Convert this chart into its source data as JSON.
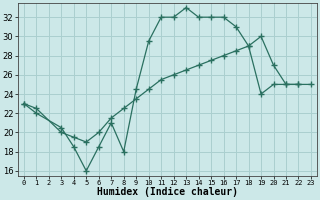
{
  "xlabel": "Humidex (Indice chaleur)",
  "xlim": [
    -0.5,
    23.5
  ],
  "ylim": [
    15.5,
    33.5
  ],
  "yticks": [
    16,
    18,
    20,
    22,
    24,
    26,
    28,
    30,
    32
  ],
  "xticks": [
    0,
    1,
    2,
    3,
    4,
    5,
    6,
    7,
    8,
    9,
    10,
    11,
    12,
    13,
    14,
    15,
    16,
    17,
    18,
    19,
    20,
    21,
    22,
    23
  ],
  "background_color": "#cce8e8",
  "line_color": "#2a7060",
  "grid_color": "#aacfcf",
  "line1_x": [
    0,
    1,
    3,
    4,
    5,
    6,
    7,
    8,
    9,
    10,
    11,
    12,
    13,
    14,
    15,
    16,
    17,
    18,
    19,
    20,
    21,
    22
  ],
  "line1_y": [
    23,
    22,
    20.5,
    18.5,
    16,
    18.5,
    21,
    18,
    24.5,
    29.5,
    32,
    32,
    33,
    32,
    32,
    32,
    31,
    29,
    30,
    27,
    25,
    25
  ],
  "line2_x": [
    0,
    1,
    3,
    4,
    5,
    6,
    7,
    8,
    9,
    10,
    11,
    12,
    13,
    14,
    15,
    16,
    17,
    18,
    19,
    20,
    21,
    22,
    23
  ],
  "line2_y": [
    23,
    22.5,
    20,
    19.5,
    19,
    20,
    21.5,
    22.5,
    23.5,
    24.5,
    25.5,
    26,
    26.5,
    27,
    27.5,
    28,
    28.5,
    29,
    24,
    25,
    25,
    25,
    25
  ],
  "label_fontsize": 7,
  "tick_fontsize": 6
}
